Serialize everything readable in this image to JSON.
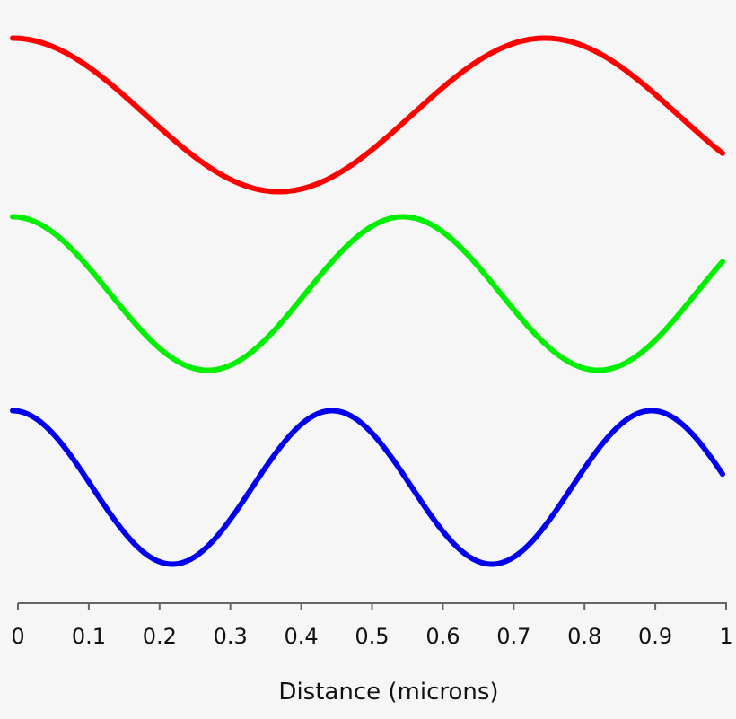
{
  "chart_data": {
    "type": "line",
    "title": "",
    "xlabel": "Distance (microns)",
    "ylabel": "",
    "xlim": [
      0,
      1
    ],
    "xticks": [
      "0",
      "0.1",
      "0.2",
      "0.3",
      "0.4",
      "0.5",
      "0.6",
      "0.7",
      "0.8",
      "0.9",
      "1"
    ],
    "grid": false,
    "legend": "none",
    "series": [
      {
        "name": "red",
        "function": "cosine",
        "wavelength_microns": 0.75,
        "amplitude": 1,
        "color": "#ff0000"
      },
      {
        "name": "green",
        "function": "cosine",
        "wavelength_microns": 0.55,
        "amplitude": 1,
        "color": "#00ee00"
      },
      {
        "name": "blue",
        "function": "cosine",
        "wavelength_microns": 0.45,
        "amplitude": 1,
        "color": "#0000ee"
      }
    ]
  }
}
